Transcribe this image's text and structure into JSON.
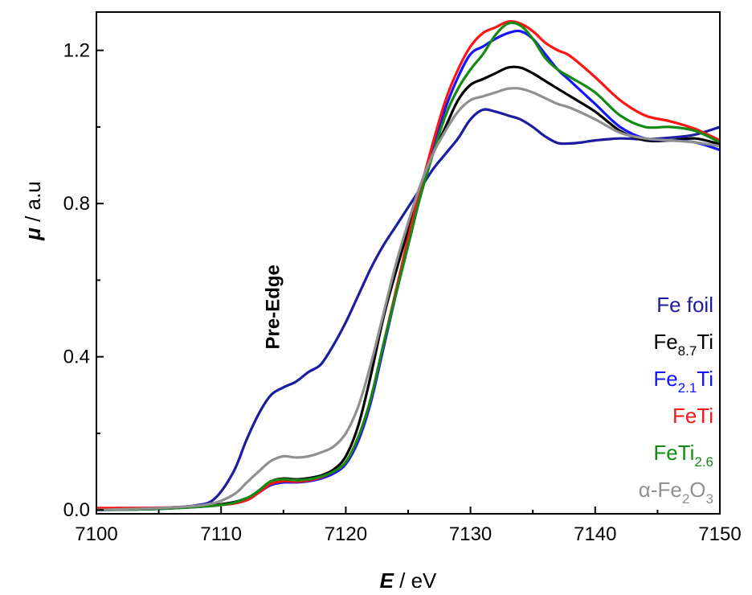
{
  "chart_data": {
    "type": "line",
    "xlabel_italic": "E",
    "xlabel_rest": " / eV",
    "ylabel_italic": "μ",
    "ylabel_rest": " / a.u",
    "xlim": [
      7100,
      7150
    ],
    "ylim": [
      -0.01,
      1.3
    ],
    "xticks": [
      7100,
      7110,
      7120,
      7130,
      7140,
      7150
    ],
    "xtick_labels": [
      "7100",
      "7110",
      "7120",
      "7130",
      "7140",
      "7150"
    ],
    "yticks": [
      0.0,
      0.4,
      0.8,
      1.2
    ],
    "ytick_labels": [
      "0.0",
      "0.4",
      "0.8",
      "1.2"
    ],
    "grid": false,
    "legend_position": "bottom-right",
    "annotation": {
      "text": "Pre-Edge",
      "x": 7114,
      "y": 0.53
    },
    "series": [
      {
        "name": "Fe foil",
        "name_parts": [
          {
            "t": "Fe foil"
          }
        ],
        "color": "#1c1ca0",
        "points": [
          [
            7100,
            0.0
          ],
          [
            7105,
            0.005
          ],
          [
            7108,
            0.012
          ],
          [
            7109.5,
            0.03
          ],
          [
            7111,
            0.1
          ],
          [
            7112,
            0.18
          ],
          [
            7113,
            0.25
          ],
          [
            7114,
            0.3
          ],
          [
            7115,
            0.32
          ],
          [
            7116,
            0.335
          ],
          [
            7117,
            0.36
          ],
          [
            7118,
            0.38
          ],
          [
            7119,
            0.43
          ],
          [
            7120,
            0.49
          ],
          [
            7121,
            0.56
          ],
          [
            7122,
            0.63
          ],
          [
            7123,
            0.69
          ],
          [
            7124,
            0.74
          ],
          [
            7125,
            0.79
          ],
          [
            7126,
            0.84
          ],
          [
            7127,
            0.89
          ],
          [
            7128,
            0.93
          ],
          [
            7129,
            0.97
          ],
          [
            7130,
            1.02
          ],
          [
            7131,
            1.045
          ],
          [
            7132,
            1.04
          ],
          [
            7133,
            1.03
          ],
          [
            7134,
            1.02
          ],
          [
            7135,
            1.0
          ],
          [
            7136,
            0.975
          ],
          [
            7137,
            0.958
          ],
          [
            7138,
            0.957
          ],
          [
            7139,
            0.96
          ],
          [
            7140,
            0.965
          ],
          [
            7142,
            0.97
          ],
          [
            7144,
            0.968
          ],
          [
            7146,
            0.972
          ],
          [
            7148,
            0.98
          ],
          [
            7150,
            1.0
          ]
        ]
      },
      {
        "name": "Fe8.7Ti",
        "name_parts": [
          {
            "t": "Fe"
          },
          {
            "t": "8.7",
            "sub": true
          },
          {
            "t": "Ti"
          }
        ],
        "color": "#000000",
        "points": [
          [
            7100,
            0.0
          ],
          [
            7105,
            0.003
          ],
          [
            7110,
            0.015
          ],
          [
            7112,
            0.03
          ],
          [
            7113,
            0.05
          ],
          [
            7114,
            0.075
          ],
          [
            7115,
            0.082
          ],
          [
            7116,
            0.08
          ],
          [
            7117,
            0.083
          ],
          [
            7118,
            0.09
          ],
          [
            7119,
            0.105
          ],
          [
            7120,
            0.14
          ],
          [
            7121,
            0.22
          ],
          [
            7122,
            0.35
          ],
          [
            7123,
            0.5
          ],
          [
            7124,
            0.62
          ],
          [
            7125,
            0.73
          ],
          [
            7126,
            0.84
          ],
          [
            7127,
            0.93
          ],
          [
            7128,
            1.0
          ],
          [
            7129,
            1.07
          ],
          [
            7130,
            1.11
          ],
          [
            7131,
            1.125
          ],
          [
            7132,
            1.14
          ],
          [
            7133,
            1.155
          ],
          [
            7134,
            1.155
          ],
          [
            7135,
            1.14
          ],
          [
            7136,
            1.12
          ],
          [
            7137,
            1.1
          ],
          [
            7138,
            1.08
          ],
          [
            7140,
            1.04
          ],
          [
            7142,
            0.99
          ],
          [
            7144,
            0.965
          ],
          [
            7146,
            0.965
          ],
          [
            7148,
            0.97
          ],
          [
            7150,
            0.955
          ]
        ]
      },
      {
        "name": "Fe2.1Ti",
        "name_parts": [
          {
            "t": "Fe"
          },
          {
            "t": "2.1",
            "sub": true
          },
          {
            "t": "Ti"
          }
        ],
        "color": "#1414ff",
        "points": [
          [
            7100,
            0.0
          ],
          [
            7105,
            0.003
          ],
          [
            7110,
            0.013
          ],
          [
            7112,
            0.025
          ],
          [
            7113,
            0.045
          ],
          [
            7114,
            0.065
          ],
          [
            7115,
            0.072
          ],
          [
            7116,
            0.072
          ],
          [
            7117,
            0.075
          ],
          [
            7118,
            0.082
          ],
          [
            7119,
            0.095
          ],
          [
            7120,
            0.12
          ],
          [
            7121,
            0.18
          ],
          [
            7122,
            0.28
          ],
          [
            7123,
            0.42
          ],
          [
            7124,
            0.56
          ],
          [
            7125,
            0.7
          ],
          [
            7126,
            0.83
          ],
          [
            7127,
            0.95
          ],
          [
            7128,
            1.05
          ],
          [
            7129,
            1.13
          ],
          [
            7130,
            1.19
          ],
          [
            7131,
            1.21
          ],
          [
            7132,
            1.23
          ],
          [
            7133,
            1.245
          ],
          [
            7134,
            1.25
          ],
          [
            7135,
            1.23
          ],
          [
            7136,
            1.19
          ],
          [
            7137,
            1.15
          ],
          [
            7138,
            1.12
          ],
          [
            7140,
            1.06
          ],
          [
            7142,
            1.0
          ],
          [
            7144,
            0.97
          ],
          [
            7146,
            0.965
          ],
          [
            7148,
            0.96
          ],
          [
            7150,
            0.94
          ]
        ]
      },
      {
        "name": "FeTi",
        "name_parts": [
          {
            "t": "FeTi"
          }
        ],
        "color": "#ff1414",
        "points": [
          [
            7100,
            0.005
          ],
          [
            7105,
            0.006
          ],
          [
            7110,
            0.013
          ],
          [
            7112,
            0.025
          ],
          [
            7113,
            0.045
          ],
          [
            7114,
            0.068
          ],
          [
            7115,
            0.075
          ],
          [
            7116,
            0.074
          ],
          [
            7117,
            0.077
          ],
          [
            7118,
            0.085
          ],
          [
            7119,
            0.1
          ],
          [
            7120,
            0.125
          ],
          [
            7121,
            0.19
          ],
          [
            7122,
            0.29
          ],
          [
            7123,
            0.43
          ],
          [
            7124,
            0.57
          ],
          [
            7125,
            0.71
          ],
          [
            7126,
            0.84
          ],
          [
            7127,
            0.96
          ],
          [
            7128,
            1.07
          ],
          [
            7129,
            1.15
          ],
          [
            7130,
            1.21
          ],
          [
            7131,
            1.245
          ],
          [
            7132,
            1.26
          ],
          [
            7133,
            1.275
          ],
          [
            7134,
            1.27
          ],
          [
            7135,
            1.25
          ],
          [
            7136,
            1.22
          ],
          [
            7137,
            1.2
          ],
          [
            7138,
            1.185
          ],
          [
            7140,
            1.13
          ],
          [
            7142,
            1.07
          ],
          [
            7144,
            1.03
          ],
          [
            7146,
            1.015
          ],
          [
            7148,
            0.995
          ],
          [
            7150,
            0.965
          ]
        ]
      },
      {
        "name": "FeTi2.6",
        "name_parts": [
          {
            "t": "FeTi"
          },
          {
            "t": "2.6",
            "sub": true
          }
        ],
        "color": "#138a13",
        "points": [
          [
            7100,
            0.0
          ],
          [
            7105,
            0.003
          ],
          [
            7110,
            0.013
          ],
          [
            7112,
            0.03
          ],
          [
            7113,
            0.05
          ],
          [
            7114,
            0.075
          ],
          [
            7115,
            0.08
          ],
          [
            7116,
            0.078
          ],
          [
            7117,
            0.08
          ],
          [
            7118,
            0.087
          ],
          [
            7119,
            0.1
          ],
          [
            7120,
            0.125
          ],
          [
            7121,
            0.19
          ],
          [
            7122,
            0.29
          ],
          [
            7123,
            0.43
          ],
          [
            7124,
            0.56
          ],
          [
            7125,
            0.69
          ],
          [
            7126,
            0.82
          ],
          [
            7127,
            0.93
          ],
          [
            7128,
            1.03
          ],
          [
            7129,
            1.1
          ],
          [
            7130,
            1.15
          ],
          [
            7131,
            1.19
          ],
          [
            7132,
            1.24
          ],
          [
            7133,
            1.27
          ],
          [
            7134,
            1.265
          ],
          [
            7135,
            1.23
          ],
          [
            7136,
            1.18
          ],
          [
            7137,
            1.15
          ],
          [
            7138,
            1.13
          ],
          [
            7140,
            1.09
          ],
          [
            7142,
            1.03
          ],
          [
            7144,
            1.0
          ],
          [
            7146,
            1.0
          ],
          [
            7148,
            0.99
          ],
          [
            7150,
            0.96
          ]
        ]
      },
      {
        "name": "α-Fe2O3",
        "name_parts": [
          {
            "t": "α-Fe"
          },
          {
            "t": "2",
            "sub": true
          },
          {
            "t": "O"
          },
          {
            "t": "3",
            "sub": true
          }
        ],
        "color": "#909090",
        "points": [
          [
            7100,
            0.0
          ],
          [
            7105,
            0.005
          ],
          [
            7109,
            0.015
          ],
          [
            7111,
            0.04
          ],
          [
            7112,
            0.07
          ],
          [
            7113,
            0.1
          ],
          [
            7114,
            0.128
          ],
          [
            7115,
            0.14
          ],
          [
            7116,
            0.137
          ],
          [
            7117,
            0.14
          ],
          [
            7118,
            0.15
          ],
          [
            7119,
            0.165
          ],
          [
            7120,
            0.2
          ],
          [
            7121,
            0.27
          ],
          [
            7122,
            0.38
          ],
          [
            7123,
            0.51
          ],
          [
            7124,
            0.64
          ],
          [
            7125,
            0.75
          ],
          [
            7126,
            0.85
          ],
          [
            7127,
            0.93
          ],
          [
            7128,
            0.99
          ],
          [
            7129,
            1.04
          ],
          [
            7130,
            1.07
          ],
          [
            7131,
            1.08
          ],
          [
            7132,
            1.09
          ],
          [
            7133,
            1.1
          ],
          [
            7134,
            1.1
          ],
          [
            7135,
            1.09
          ],
          [
            7136,
            1.075
          ],
          [
            7137,
            1.06
          ],
          [
            7138,
            1.05
          ],
          [
            7140,
            1.02
          ],
          [
            7142,
            0.985
          ],
          [
            7144,
            0.97
          ],
          [
            7146,
            0.965
          ],
          [
            7148,
            0.96
          ],
          [
            7150,
            0.95
          ]
        ]
      }
    ]
  }
}
